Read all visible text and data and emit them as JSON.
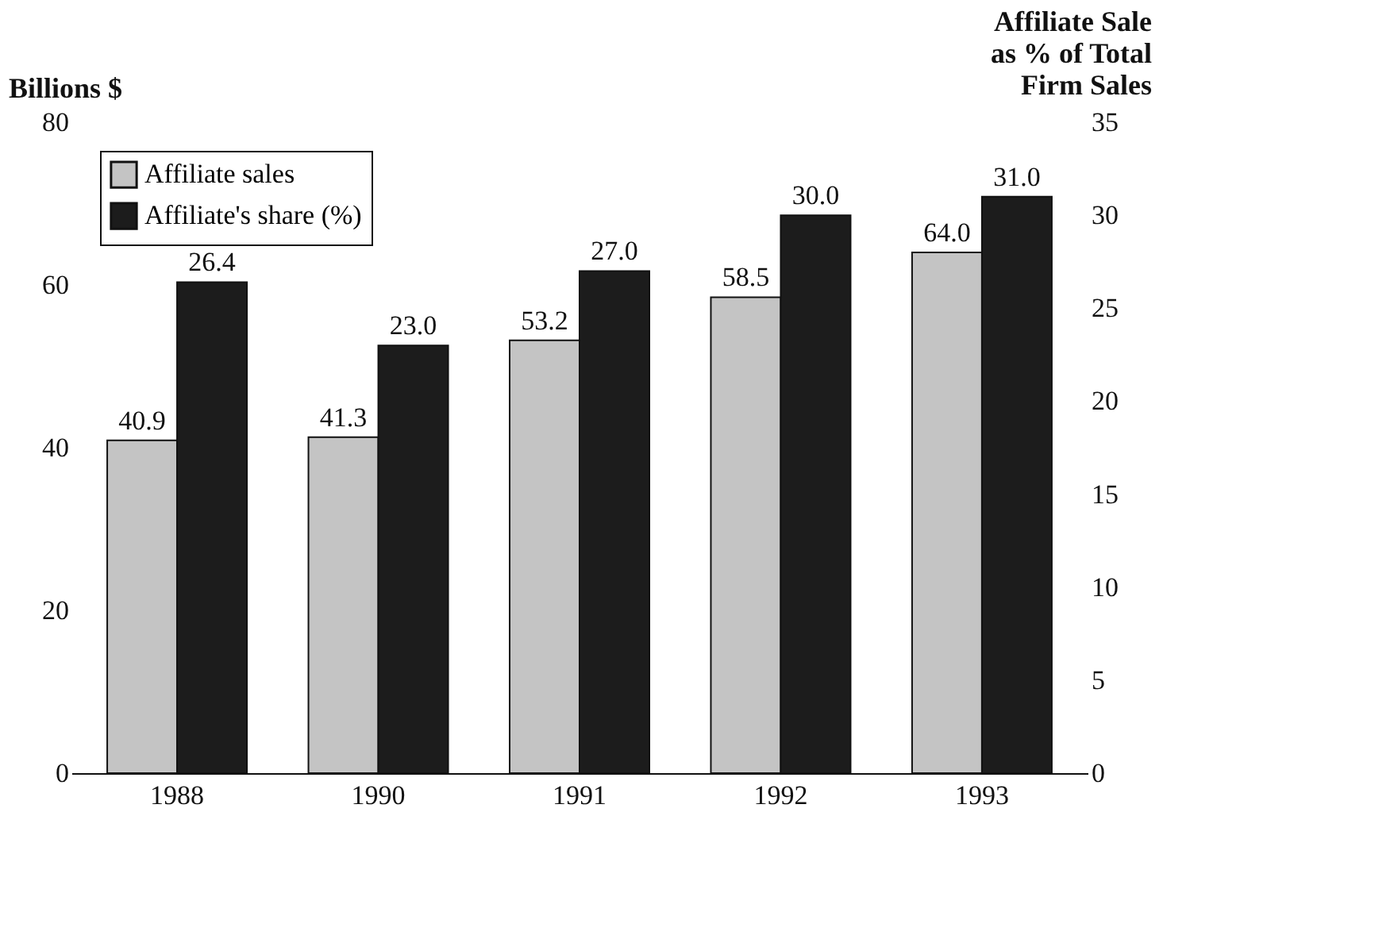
{
  "chart_data": {
    "type": "bar",
    "categories": [
      "1988",
      "1990",
      "1991",
      "1992",
      "1993"
    ],
    "ylabel": "Billions $",
    "y2label": "Affiliate Sale\nas % of Total\nFirm Sales",
    "ylim": [
      0,
      80
    ],
    "yticks": [
      0,
      20,
      40,
      60,
      80
    ],
    "y2lim": [
      0,
      35
    ],
    "y2ticks": [
      0,
      5,
      10,
      15,
      20,
      25,
      30,
      35
    ],
    "series": [
      {
        "name": "Affiliate sales",
        "color": "#c4c4c4",
        "values": [
          40.9,
          41.3,
          53.2,
          58.5,
          64.0
        ],
        "value_labels": [
          "40.9",
          "41.3",
          "53.2",
          "58.5",
          "64.0"
        ]
      },
      {
        "name": "Affiliate's share (%)",
        "color": "#1c1c1c",
        "values": [
          26.4,
          23.0,
          27.0,
          30.0,
          31.0
        ],
        "value_labels": [
          "26.4",
          "23.0",
          "27.0",
          "30.0",
          "31.0"
        ],
        "axis": "y2"
      }
    ],
    "legend": "top left",
    "grid": false
  }
}
